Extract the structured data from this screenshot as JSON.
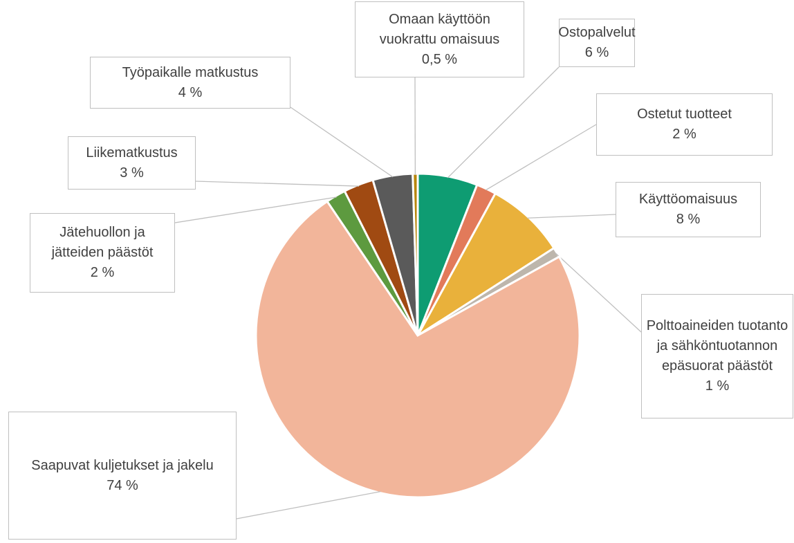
{
  "chart_data": {
    "type": "pie",
    "categories": [
      "Ostopalvelut",
      "Ostetut tuotteet",
      "Käyttöomaisuus",
      "Polttoaineiden tuotanto ja sähköntuotannon epäsuorat päästöt",
      "Saapuvat kuljetukset ja jakelu",
      "Jätehuollon ja jätteiden päästöt",
      "Liikematkustus",
      "Työpaikalle matkustus",
      "Omaan käyttöön vuokrattu omaisuus"
    ],
    "values": [
      6,
      2,
      8,
      1,
      74,
      2,
      3,
      4,
      0.5
    ],
    "value_labels": [
      "6 %",
      "2 %",
      "8 %",
      "1 %",
      "74 %",
      "2 %",
      "3 %",
      "4 %",
      "0,5 %"
    ],
    "colors": [
      "#0e9c72",
      "#e27a5a",
      "#e9b13b",
      "#bdb6ac",
      "#f2b59a",
      "#5d9a3f",
      "#a04a12",
      "#5a5a5a",
      "#b8860b"
    ]
  }
}
